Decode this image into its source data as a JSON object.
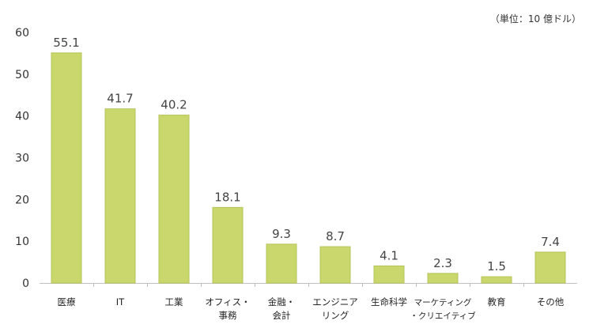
{
  "chart_data": {
    "type": "bar",
    "unit_note": "（単位：10 億ドル）",
    "ylim": [
      0,
      60
    ],
    "yticks": [
      0,
      10,
      20,
      30,
      40,
      50,
      60
    ],
    "categories": [
      [
        "医療"
      ],
      [
        "IT"
      ],
      [
        "工業"
      ],
      [
        "オフィス・",
        "事務"
      ],
      [
        "金融・",
        "会計"
      ],
      [
        "エンジニア",
        "リング"
      ],
      [
        "生命科学"
      ],
      [
        "マーケティング",
        "・クリエイティブ"
      ],
      [
        "教育"
      ],
      [
        "その他"
      ]
    ],
    "values": [
      55.1,
      41.7,
      40.2,
      18.1,
      9.3,
      8.7,
      4.1,
      2.3,
      1.5,
      7.4
    ],
    "value_labels": [
      "55.1",
      "41.7",
      "40.2",
      "18.1",
      "9.3",
      "8.7",
      "4.1",
      "2.3",
      "1.5",
      "7.4"
    ],
    "colors": {
      "bar_fill": "#c9d76c",
      "bar_stroke": "#b5c45a",
      "axis": "#bfbfbf",
      "tick_text": "#333333",
      "value_text": "#444444",
      "category_text": "#222222"
    }
  }
}
